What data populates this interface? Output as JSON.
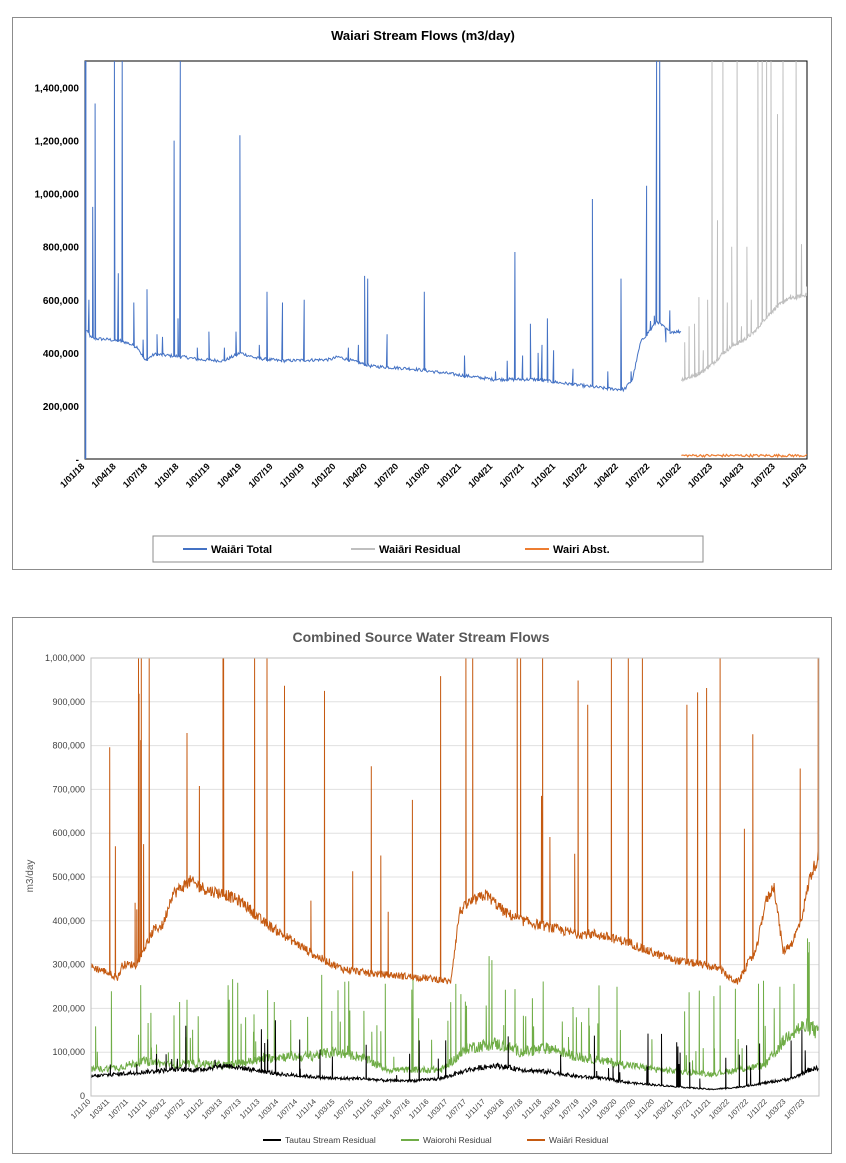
{
  "charts": [
    {
      "title": "Waiari Stream Flows (m3/day)",
      "ylabel": "",
      "y_ticks": [
        "-",
        "200,000",
        "400,000",
        "600,000",
        "800,000",
        "1,000,000",
        "1,200,000",
        "1,400,000"
      ],
      "x_ticks": [
        "1/01/18",
        "1/04/18",
        "1/07/18",
        "1/10/18",
        "1/01/19",
        "1/04/19",
        "1/07/19",
        "1/10/19",
        "1/01/20",
        "1/04/20",
        "1/07/20",
        "1/10/20",
        "1/01/21",
        "1/04/21",
        "1/07/21",
        "1/10/21",
        "1/01/22",
        "1/04/22",
        "1/07/22",
        "1/10/22",
        "1/01/23",
        "1/04/23",
        "1/07/23",
        "1/10/23"
      ],
      "legend": [
        "Waiāri Total",
        "Waiāri Residual",
        "Wairi Abst."
      ]
    },
    {
      "title": "Combined Source Water Stream Flows",
      "ylabel": "m3/day",
      "y_ticks": [
        "0",
        "100,000",
        "200,000",
        "300,000",
        "400,000",
        "500,000",
        "600,000",
        "700,000",
        "800,000",
        "900,000",
        "1,000,000"
      ],
      "x_ticks": [
        "1/11/10",
        "1/03/11",
        "1/07/11",
        "1/11/11",
        "1/03/12",
        "1/07/12",
        "1/11/12",
        "1/03/13",
        "1/07/13",
        "1/11/13",
        "1/03/14",
        "1/07/14",
        "1/11/14",
        "1/03/15",
        "1/07/15",
        "1/11/15",
        "1/03/16",
        "1/07/16",
        "1/11/16",
        "1/03/17",
        "1/07/17",
        "1/11/17",
        "1/03/18",
        "1/07/18",
        "1/11/18",
        "1/03/19",
        "1/07/19",
        "1/11/19",
        "1/03/20",
        "1/07/20",
        "1/11/20",
        "1/03/21",
        "1/07/21",
        "1/11/21",
        "1/03/22",
        "1/07/22",
        "1/11/22",
        "1/03/23",
        "1/07/23"
      ],
      "legend": [
        "Tautau Stream Residual",
        "Waiorohi Residual",
        "Waiāri Residual"
      ]
    }
  ],
  "chart_data": [
    {
      "type": "line",
      "title": "Waiari Stream Flows (m3/day)",
      "x_range": [
        "2018-01-01",
        "2023-10-01"
      ],
      "ylim": [
        0,
        1500000
      ],
      "grid": false,
      "legend_position": "bottom",
      "colors": {
        "total": "#4472c4",
        "residual": "#bfbfbf",
        "abst": "#ed7d31"
      },
      "series": [
        {
          "name": "Waiāri Total",
          "color": "#4472c4",
          "baseline": [
            [
              0,
              490000
            ],
            [
              0.5,
              470000
            ],
            [
              0.8,
              455000
            ],
            [
              3,
              450000
            ],
            [
              5,
              440000
            ],
            [
              6.5,
              420000
            ],
            [
              7.3,
              370000
            ],
            [
              8.5,
              395000
            ],
            [
              12,
              385000
            ],
            [
              14,
              375000
            ],
            [
              17,
              370000
            ],
            [
              19,
              400000
            ],
            [
              21,
              380000
            ],
            [
              24,
              370000
            ],
            [
              30,
              375000
            ],
            [
              31,
              385000
            ],
            [
              35,
              350000
            ],
            [
              40,
              340000
            ],
            [
              45,
              320000
            ],
            [
              50,
              300000
            ],
            [
              55,
              300000
            ],
            [
              60,
              280000
            ],
            [
              64,
              265000
            ],
            [
              66,
              262000
            ],
            [
              67,
              300000
            ],
            [
              68,
              440000
            ],
            [
              69,
              480000
            ],
            [
              70,
              520000
            ],
            [
              71.5,
              480000
            ],
            [
              73,
              480000
            ]
          ],
          "spikes": [
            [
              0.1,
              1500000
            ],
            [
              0.5,
              600000
            ],
            [
              1,
              950000
            ],
            [
              1.3,
              1340000
            ],
            [
              3.8,
              1500000
            ],
            [
              4.3,
              700000
            ],
            [
              4.6,
              450000
            ],
            [
              4.8,
              1500000
            ],
            [
              6.3,
              590000
            ],
            [
              7.5,
              450000
            ],
            [
              8,
              640000
            ],
            [
              9.3,
              470000
            ],
            [
              10,
              460000
            ],
            [
              11.5,
              1200000
            ],
            [
              12,
              530000
            ],
            [
              12.3,
              1500000
            ],
            [
              14.5,
              420000
            ],
            [
              16,
              480000
            ],
            [
              18,
              420000
            ],
            [
              19.5,
              480000
            ],
            [
              20,
              1220000
            ],
            [
              22.5,
              430000
            ],
            [
              23.5,
              630000
            ],
            [
              25.5,
              590000
            ],
            [
              28.3,
              600000
            ],
            [
              34,
              420000
            ],
            [
              35.3,
              430000
            ],
            [
              36.1,
              690000
            ],
            [
              36.5,
              680000
            ],
            [
              39,
              470000
            ],
            [
              43.8,
              630000
            ],
            [
              49,
              390000
            ],
            [
              53,
              330000
            ],
            [
              54.5,
              370000
            ],
            [
              55.5,
              780000
            ],
            [
              56.5,
              390000
            ],
            [
              57.5,
              510000
            ],
            [
              58.5,
              400000
            ],
            [
              59,
              430000
            ],
            [
              59.7,
              530000
            ],
            [
              60.5,
              410000
            ],
            [
              63,
              340000
            ],
            [
              65.5,
              980000
            ],
            [
              67.5,
              330000
            ],
            [
              69.2,
              680000
            ],
            [
              70.5,
              330000
            ],
            [
              72.5,
              1030000
            ],
            [
              73,
              520000
            ],
            [
              73.5,
              540000
            ],
            [
              73.8,
              1500000
            ],
            [
              74.2,
              1500000
            ],
            [
              75,
              440000
            ],
            [
              75.5,
              560000
            ],
            [
              76,
              480000
            ],
            [
              76.5,
              480000
            ],
            [
              77,
              500000
            ]
          ],
          "note": "Daily flow series from 1/01/18 to 1/10/22, characterised by a baseline recession with frequent storm spikes"
        },
        {
          "name": "Waiāri Residual",
          "color": "#bfbfbf",
          "baseline": [
            [
              57,
              300000
            ],
            [
              58,
              310000
            ],
            [
              60,
              340000
            ],
            [
              61,
              370000
            ],
            [
              62,
              400000
            ],
            [
              63,
              440000
            ],
            [
              64,
              470000
            ],
            [
              65,
              520000
            ],
            [
              66,
              560000
            ],
            [
              67,
              590000
            ],
            [
              68,
              610000
            ],
            [
              69,
              620000
            ]
          ],
          "spikes": [
            [
              57.3,
              440000
            ],
            [
              57.7,
              500000
            ],
            [
              58.2,
              510000
            ],
            [
              58.6,
              610000
            ],
            [
              59,
              410000
            ],
            [
              59.4,
              600000
            ],
            [
              59.8,
              1500000
            ],
            [
              60.3,
              900000
            ],
            [
              60.8,
              1500000
            ],
            [
              61.2,
              590000
            ],
            [
              61.6,
              800000
            ],
            [
              62.1,
              1500000
            ],
            [
              62.5,
              500000
            ],
            [
              63,
              800000
            ],
            [
              63.4,
              600000
            ],
            [
              64,
              1500000
            ],
            [
              64.4,
              1500000
            ],
            [
              64.8,
              1500000
            ],
            [
              65.2,
              1500000
            ],
            [
              65.8,
              1300000
            ],
            [
              66.3,
              1500000
            ],
            [
              67,
              620000
            ],
            [
              67.5,
              1500000
            ],
            [
              68,
              810000
            ],
            [
              68.5,
              650000
            ]
          ],
          "x_months_since": "2018-01-01"
        },
        {
          "name": "Wairi Abst.",
          "color": "#ed7d31",
          "values_approx": "~10,000 to ~25,000 m3/day from 1/10/22 to 1/10/23"
        }
      ]
    },
    {
      "type": "line",
      "title": "Combined Source Water Stream Flows",
      "ylabel": "m3/day",
      "x_range": [
        "2010-11-01",
        "2023-10-01"
      ],
      "ylim": [
        0,
        1000000
      ],
      "grid": true,
      "legend_position": "bottom",
      "series": [
        {
          "name": "Waiāri Residual",
          "color": "#c55a11",
          "baseline": [
            [
              0,
              295000
            ],
            [
              3,
              285000
            ],
            [
              6,
              270000
            ],
            [
              7,
              300000
            ],
            [
              8,
              300000
            ],
            [
              10,
              300000
            ],
            [
              12,
              340000
            ],
            [
              14,
              380000
            ],
            [
              16,
              390000
            ],
            [
              18,
              460000
            ],
            [
              22,
              490000
            ],
            [
              26,
              470000
            ],
            [
              30,
              460000
            ],
            [
              34,
              440000
            ],
            [
              38,
              400000
            ],
            [
              44,
              360000
            ],
            [
              50,
              320000
            ],
            [
              56,
              290000
            ],
            [
              62,
              280000
            ],
            [
              68,
              275000
            ],
            [
              74,
              270000
            ],
            [
              78,
              265000
            ],
            [
              80,
              260000
            ],
            [
              82,
              420000
            ],
            [
              84,
              440000
            ],
            [
              88,
              460000
            ],
            [
              92,
              420000
            ],
            [
              96,
              400000
            ],
            [
              100,
              390000
            ],
            [
              104,
              380000
            ],
            [
              108,
              370000
            ],
            [
              112,
              370000
            ],
            [
              116,
              360000
            ],
            [
              120,
              350000
            ],
            [
              124,
              330000
            ],
            [
              130,
              310000
            ],
            [
              136,
              300000
            ],
            [
              140,
              290000
            ],
            [
              142,
              270000
            ],
            [
              144,
              260000
            ],
            [
              146,
              300000
            ],
            [
              148,
              330000
            ],
            [
              150,
              440000
            ],
            [
              152,
              480000
            ],
            [
              154,
              330000
            ],
            [
              156,
              350000
            ],
            [
              158,
              400000
            ],
            [
              160,
              500000
            ],
            [
              162,
              550000
            ],
            [
              155,
              280000
            ]
          ]
        },
        {
          "name": "Waiorohi Residual",
          "color": "#70ad47",
          "baseline": [
            [
              0,
              60000
            ],
            [
              6,
              65000
            ],
            [
              12,
              80000
            ],
            [
              18,
              70000
            ],
            [
              24,
              75000
            ],
            [
              30,
              70000
            ],
            [
              36,
              80000
            ],
            [
              42,
              90000
            ],
            [
              48,
              90000
            ],
            [
              54,
              100000
            ],
            [
              60,
              90000
            ],
            [
              66,
              60000
            ],
            [
              72,
              60000
            ],
            [
              78,
              60000
            ],
            [
              84,
              110000
            ],
            [
              90,
              120000
            ],
            [
              96,
              100000
            ],
            [
              102,
              110000
            ],
            [
              108,
              90000
            ],
            [
              114,
              80000
            ],
            [
              120,
              70000
            ],
            [
              126,
              60000
            ],
            [
              132,
              55000
            ],
            [
              138,
              50000
            ],
            [
              144,
              60000
            ],
            [
              150,
              70000
            ],
            [
              156,
              150000
            ],
            [
              160,
              160000
            ],
            [
              162,
              140000
            ]
          ]
        },
        {
          "name": "Tautau Stream Residual",
          "color": "#000000",
          "baseline": [
            [
              0,
              45000
            ],
            [
              6,
              50000
            ],
            [
              12,
              55000
            ],
            [
              18,
              60000
            ],
            [
              24,
              60000
            ],
            [
              30,
              70000
            ],
            [
              36,
              60000
            ],
            [
              42,
              50000
            ],
            [
              48,
              45000
            ],
            [
              54,
              40000
            ],
            [
              60,
              40000
            ],
            [
              66,
              35000
            ],
            [
              72,
              35000
            ],
            [
              78,
              40000
            ],
            [
              84,
              60000
            ],
            [
              90,
              70000
            ],
            [
              96,
              60000
            ],
            [
              102,
              55000
            ],
            [
              108,
              45000
            ],
            [
              114,
              40000
            ],
            [
              120,
              30000
            ],
            [
              126,
              25000
            ],
            [
              132,
              20000
            ],
            [
              138,
              15000
            ],
            [
              144,
              20000
            ],
            [
              150,
              30000
            ],
            [
              156,
              40000
            ],
            [
              160,
              60000
            ],
            [
              162,
              65000
            ]
          ]
        }
      ],
      "x_units": "months since 2010-11-01"
    }
  ]
}
